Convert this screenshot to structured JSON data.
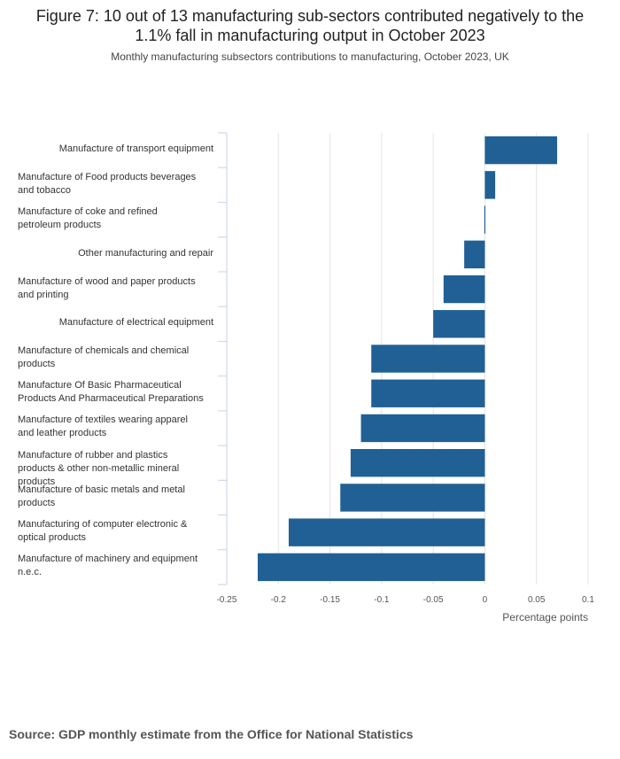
{
  "title": "Figure 7: 10 out of 13 manufacturing sub-sectors contributed negatively to the 1.1% fall in manufacturing output in October 2023",
  "subtitle": "Monthly manufacturing subsectors contributions to manufacturing, October 2023, UK",
  "source": "Source: GDP monthly estimate from the Office for National Statistics",
  "colors": {
    "bar": "#206095",
    "grid": "#e3e3e3",
    "axis": "#c9d2e8"
  },
  "chart_data": {
    "type": "bar",
    "orientation": "horizontal",
    "title": "Figure 7: 10 out of 13 manufacturing sub-sectors contributed negatively to the 1.1% fall in manufacturing output in October 2023",
    "subtitle": "Monthly manufacturing subsectors contributions to manufacturing, October 2023, UK",
    "xlabel": "Percentage points",
    "ylabel": "",
    "xlim": [
      -0.25,
      0.1
    ],
    "xticks": [
      -0.25,
      -0.2,
      -0.15,
      -0.1,
      -0.05,
      0,
      0.05,
      0.1
    ],
    "xtick_labels": [
      "-0.25",
      "-0.2",
      "-0.15",
      "-0.1",
      "-0.05",
      "0",
      "0.05",
      "0.1"
    ],
    "grid": true,
    "categories": [
      "Manufacture of transport equipment",
      "Manufacture of Food products beverages and tobacco",
      "Manufacture of coke and refined petroleum products",
      "Other manufacturing and repair",
      "Manufacture of wood and paper products and printing",
      "Manufacture of electrical equipment",
      "Manufacture of chemicals and chemical products",
      "Manufacture Of Basic Pharmaceutical Products And Pharmaceutical Preparations",
      "Manufacture of textiles wearing apparel and leather products",
      "Manufacture of rubber and plastics products & other non-metallic mineral products",
      "Manufacture of basic metals and metal products",
      "Manufacturing of computer electronic & optical products",
      "Manufacture of machinery and equipment n.e.c."
    ],
    "category_lines": [
      [
        "Manufacture of transport equipment"
      ],
      [
        "Manufacture of Food products beverages",
        "and tobacco"
      ],
      [
        "Manufacture of coke and refined",
        "petroleum products"
      ],
      [
        "Other manufacturing and repair"
      ],
      [
        "Manufacture of wood and paper products",
        "and printing"
      ],
      [
        "Manufacture of electrical equipment"
      ],
      [
        "Manufacture of chemicals and chemical",
        "products"
      ],
      [
        "Manufacture Of Basic Pharmaceutical",
        "Products And Pharmaceutical Preparations"
      ],
      [
        "Manufacture of textiles wearing apparel",
        "and leather products"
      ],
      [
        "Manufacture of rubber and plastics",
        "products & other non-metallic mineral",
        "products"
      ],
      [
        "Manufacture of basic metals and metal",
        "products"
      ],
      [
        "Manufacturing of computer electronic &",
        "optical products"
      ],
      [
        "Manufacture of machinery and equipment",
        "n.e.c."
      ]
    ],
    "label_align": [
      "right",
      "left",
      "left",
      "right",
      "left",
      "right",
      "left",
      "left",
      "left",
      "left",
      "left",
      "left",
      "left"
    ],
    "values": [
      0.07,
      0.01,
      0.0,
      -0.02,
      -0.04,
      -0.05,
      -0.11,
      -0.11,
      -0.12,
      -0.13,
      -0.14,
      -0.19,
      -0.22
    ]
  }
}
